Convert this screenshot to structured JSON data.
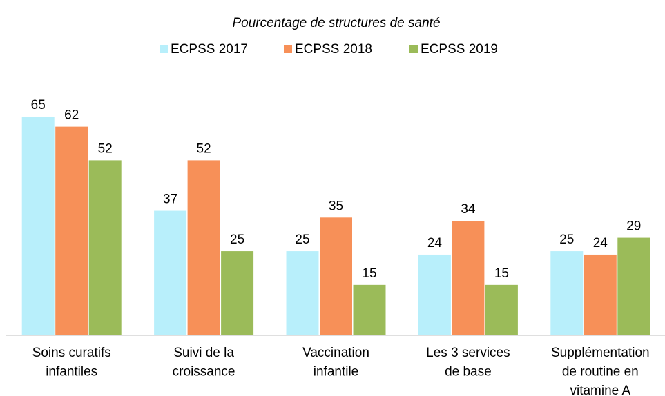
{
  "chart_data": {
    "type": "bar",
    "title": "Pourcentage de structures de santé",
    "categories": [
      "Soins curatifs infantiles",
      "Suivi de la croissance",
      "Vaccination infantile",
      "Les 3 services de base",
      "Supplémentation de routine en vitamine A"
    ],
    "series": [
      {
        "name": "ECPSS 2017",
        "color": "#b8effb",
        "values": [
          65,
          37,
          25,
          24,
          25
        ]
      },
      {
        "name": "ECPSS 2018",
        "color": "#f79058",
        "values": [
          62,
          52,
          35,
          34,
          24
        ]
      },
      {
        "name": "ECPSS 2019",
        "color": "#9bbb59",
        "values": [
          52,
          25,
          15,
          15,
          29
        ]
      }
    ],
    "ylim": [
      0,
      70
    ]
  }
}
